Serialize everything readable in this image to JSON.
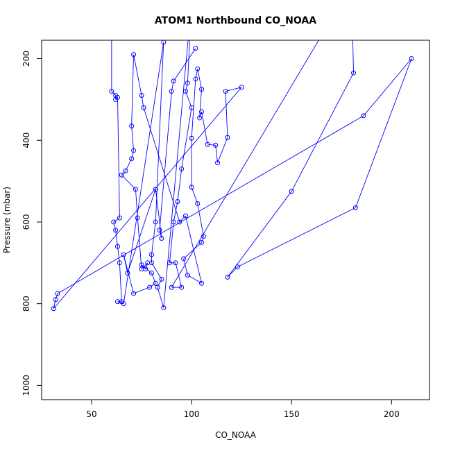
{
  "chart_data": {
    "type": "line",
    "title": "ATOM1 Northbound CO_NOAA",
    "xlabel": "CO_NOAA",
    "ylabel": "Pressure (mbar)",
    "xlim": [
      25,
      219
    ],
    "ylim": [
      1035,
      155
    ],
    "y_reversed": true,
    "x_ticks": [
      50,
      100,
      150,
      200
    ],
    "y_ticks": [
      200,
      400,
      600,
      800,
      1000
    ],
    "x_tick_labels": [
      "50",
      "100",
      "150",
      "200"
    ],
    "y_tick_labels": [
      "200",
      "400",
      "600",
      "800",
      "1000"
    ],
    "grid": false,
    "legend": "none",
    "series": [
      {
        "color": "#0000ff",
        "marker": "open-circle",
        "points": [
          [
            60,
            50
          ],
          [
            60,
            280
          ],
          [
            62,
            290
          ],
          [
            62,
            300
          ],
          [
            63,
            295
          ],
          [
            64,
            590
          ],
          [
            61,
            600
          ],
          [
            62,
            620
          ],
          [
            63,
            660
          ],
          [
            64,
            700
          ],
          [
            65,
            795
          ],
          [
            63,
            795
          ],
          [
            66,
            800
          ],
          [
            86,
            160
          ],
          [
            82,
            600
          ],
          [
            80,
            680
          ],
          [
            80,
            700
          ],
          [
            85,
            740
          ],
          [
            83,
            760
          ],
          [
            86,
            810
          ],
          [
            100,
            60
          ],
          [
            98,
            260
          ],
          [
            97,
            280
          ],
          [
            100,
            320
          ],
          [
            95,
            470
          ],
          [
            93,
            550
          ],
          [
            91,
            600
          ],
          [
            89,
            700
          ],
          [
            92,
            700
          ],
          [
            95,
            760
          ],
          [
            90,
            760
          ],
          [
            180,
            20
          ],
          [
            181,
            235
          ],
          [
            150,
            525
          ],
          [
            118,
            735
          ],
          [
            123,
            710
          ],
          [
            182,
            565
          ],
          [
            210,
            200
          ],
          [
            186,
            340
          ],
          [
            33,
            775
          ],
          [
            32,
            790
          ],
          [
            31,
            812
          ],
          [
            125,
            270
          ],
          [
            117,
            280
          ],
          [
            118,
            393
          ],
          [
            113,
            455
          ],
          [
            112,
            412
          ],
          [
            108,
            410
          ],
          [
            105,
            330
          ],
          [
            104,
            345
          ],
          [
            105,
            275
          ],
          [
            103,
            225
          ],
          [
            102,
            250
          ],
          [
            100,
            395
          ],
          [
            100,
            515
          ],
          [
            103,
            555
          ],
          [
            106,
            635
          ],
          [
            105,
            650
          ],
          [
            96,
            690
          ],
          [
            98,
            730
          ],
          [
            105,
            750
          ],
          [
            97,
            585
          ],
          [
            94,
            600
          ],
          [
            76,
            320
          ],
          [
            75,
            290
          ],
          [
            71,
            190
          ],
          [
            70,
            365
          ],
          [
            71,
            425
          ],
          [
            70,
            445
          ],
          [
            67,
            475
          ],
          [
            65,
            485
          ],
          [
            72,
            520
          ],
          [
            73,
            590
          ],
          [
            75,
            715
          ],
          [
            78,
            700
          ],
          [
            77,
            715
          ],
          [
            75,
            705
          ],
          [
            80,
            725
          ],
          [
            82,
            750
          ],
          [
            79,
            760
          ],
          [
            71,
            775
          ],
          [
            66,
            680
          ],
          [
            68,
            725
          ],
          [
            82,
            520
          ],
          [
            85,
            640
          ],
          [
            84,
            620
          ],
          [
            90,
            280
          ],
          [
            91,
            255
          ],
          [
            102,
            175
          ]
        ]
      }
    ]
  }
}
